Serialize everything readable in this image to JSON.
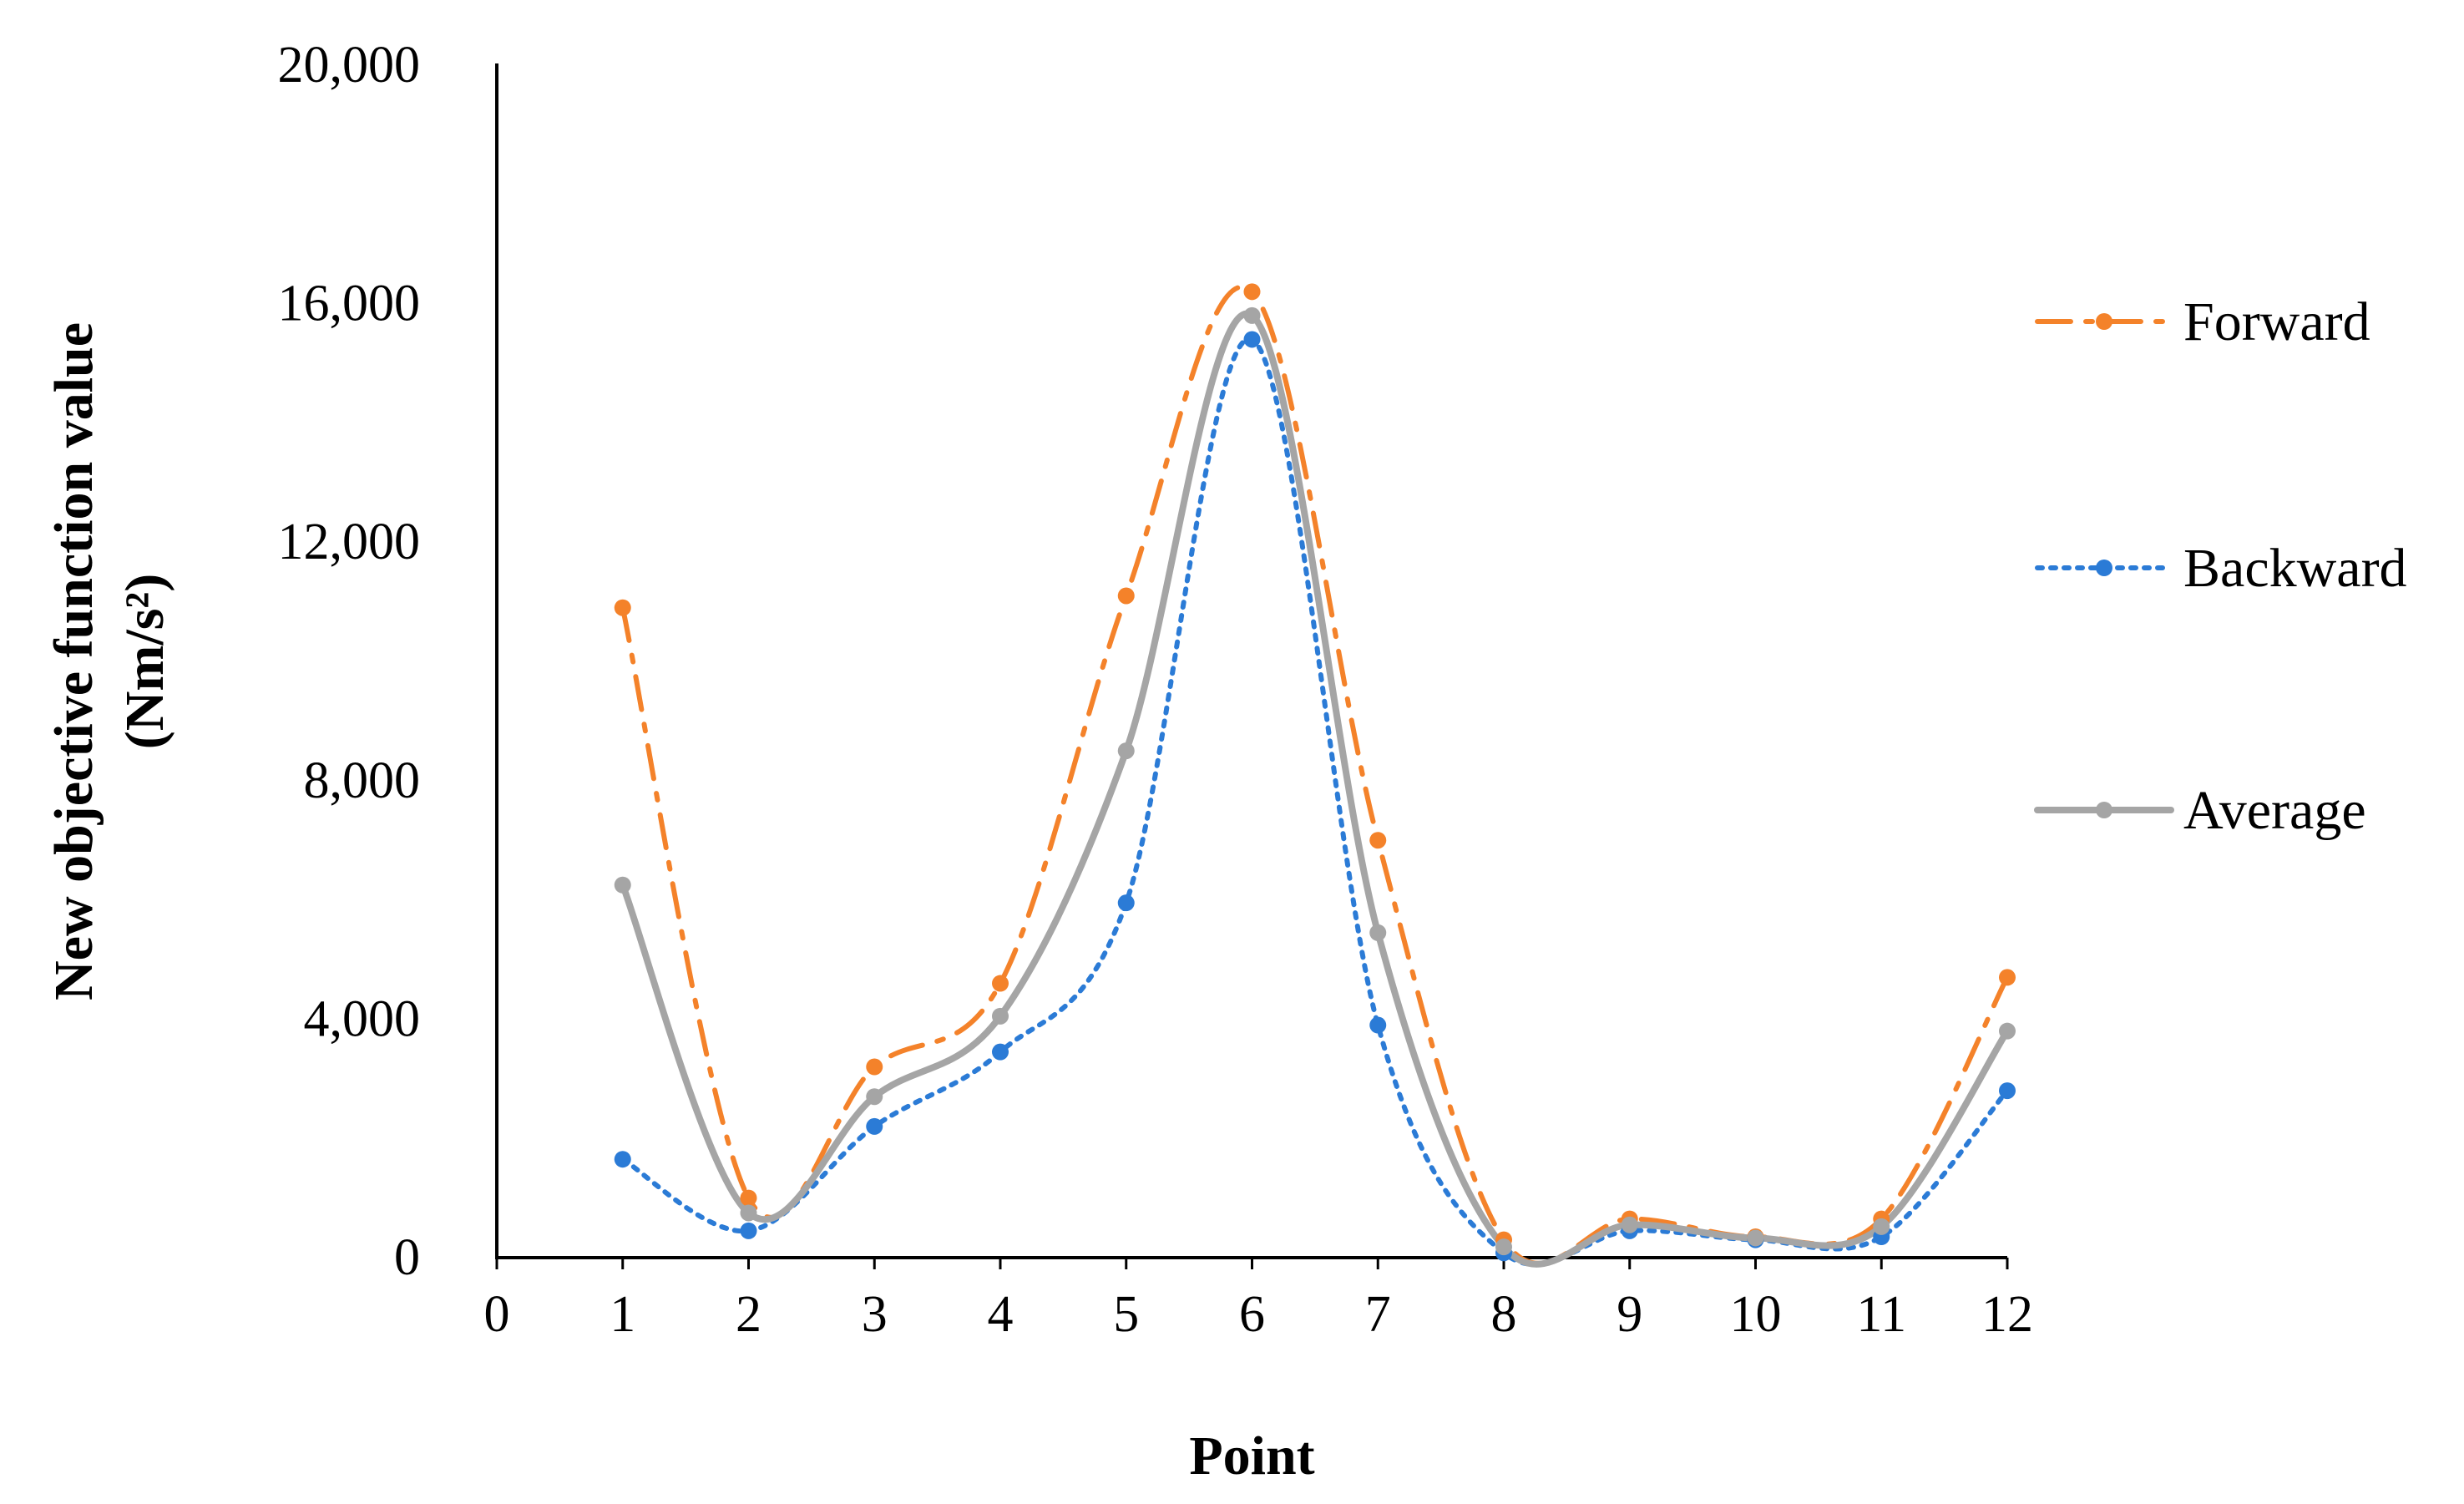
{
  "chart_data": {
    "type": "line",
    "title": "",
    "xlabel": "Point",
    "ylabel_line1": "New objective function value",
    "ylabel_line2": "(Nm/s²)",
    "xlim": [
      0,
      12
    ],
    "ylim": [
      0,
      20000
    ],
    "x_ticks": [
      0,
      1,
      2,
      3,
      4,
      5,
      6,
      7,
      8,
      9,
      10,
      11,
      12
    ],
    "x_tick_labels": [
      "0",
      "1",
      "2",
      "3",
      "4",
      "5",
      "6",
      "7",
      "8",
      "9",
      "10",
      "11",
      "12"
    ],
    "y_ticks": [
      0,
      4000,
      8000,
      12000,
      16000,
      20000
    ],
    "y_tick_labels": [
      "0",
      "4,000",
      "8,000",
      "12,000",
      "16,000",
      "20,000"
    ],
    "grid": false,
    "legend_position": "right",
    "x": [
      1,
      2,
      3,
      4,
      5,
      6,
      7,
      8,
      9,
      10,
      11,
      12
    ],
    "series": [
      {
        "name": "Forward",
        "color": "#F4822A",
        "style": "dash-dot",
        "values": [
          10900,
          1000,
          3200,
          4600,
          11100,
          16200,
          7000,
          300,
          650,
          350,
          650,
          4700
        ]
      },
      {
        "name": "Backward",
        "color": "#2B7BD6",
        "style": "dotted",
        "values": [
          1650,
          450,
          2200,
          3450,
          5950,
          15400,
          3900,
          80,
          450,
          300,
          350,
          2800
        ]
      },
      {
        "name": "Average",
        "color": "#A5A5A5",
        "style": "solid",
        "values": [
          6250,
          750,
          2700,
          4050,
          8500,
          15800,
          5450,
          180,
          550,
          330,
          520,
          3800
        ]
      }
    ]
  }
}
